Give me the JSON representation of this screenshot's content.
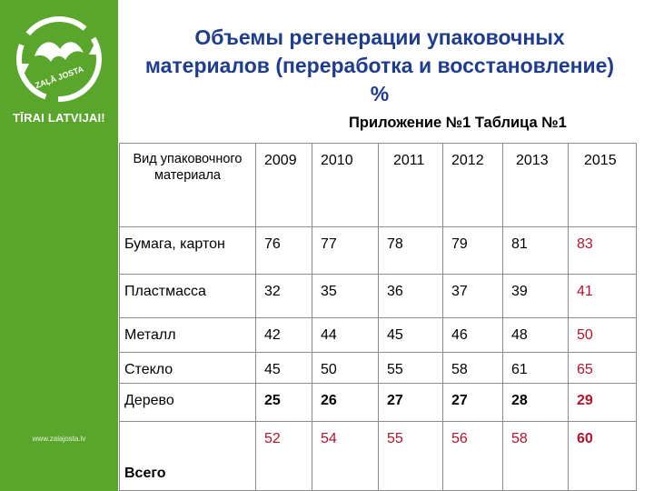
{
  "brand": {
    "logo_text": "ZAĻĀ JOSTA",
    "tagline": "TĪRAI LATVIJAI!",
    "website": "www.zalajosta.lv",
    "color": "#5aa52c"
  },
  "title": "Объемы регенерации упаковочных материалов (переработка и восстановление) %",
  "subtitle": "Приложение №1 Таблица №1",
  "table": {
    "header_label": "Вид упаковочного материала",
    "years": [
      "2009",
      "2010",
      "2011",
      "2012",
      "2013",
      "2015"
    ],
    "rows": [
      {
        "label": "Бумага, картон",
        "values": [
          "76",
          "77",
          "78",
          "79",
          "81",
          "83"
        ]
      },
      {
        "label": "Пластмасса",
        "values": [
          "32",
          "35",
          "36",
          "37",
          "39",
          "41"
        ]
      },
      {
        "label": "Металл",
        "values": [
          "42",
          "44",
          "45",
          "46",
          "48",
          "50"
        ]
      },
      {
        "label": "Стекло",
        "values": [
          "45",
          "50",
          "55",
          "58",
          "61",
          "65"
        ]
      },
      {
        "label": "Дерево",
        "values": [
          "25",
          "26",
          "27",
          "27",
          "28",
          "29"
        ]
      },
      {
        "label": "Всего",
        "values": [
          "52",
          "54",
          "55",
          "56",
          "58",
          "60"
        ]
      }
    ],
    "accent_color": "#b3142c"
  }
}
